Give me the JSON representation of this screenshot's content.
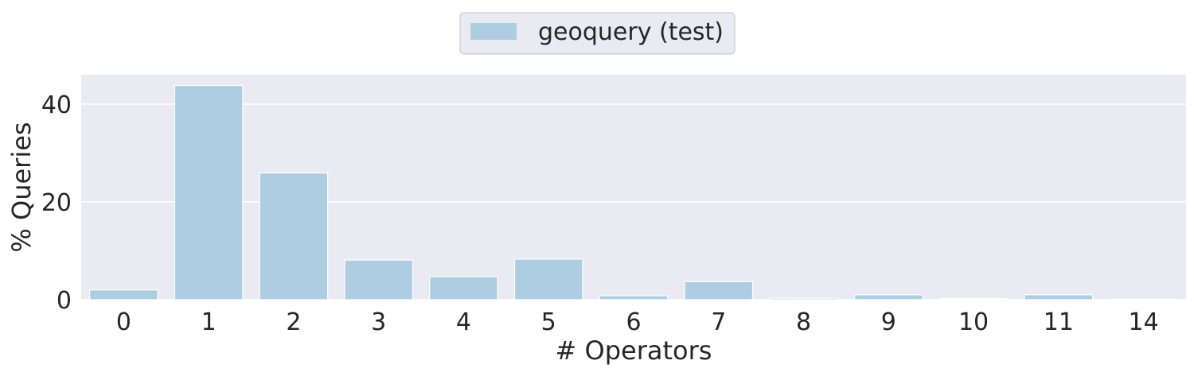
{
  "chart_data": {
    "type": "bar",
    "categories": [
      "0",
      "1",
      "2",
      "3",
      "4",
      "5",
      "6",
      "7",
      "8",
      "9",
      "10",
      "11",
      "14"
    ],
    "series": [
      {
        "name": "geoquery (test)",
        "values": [
          2.0,
          43.8,
          25.9,
          8.1,
          4.7,
          8.3,
          0.8,
          3.7,
          0.3,
          1.0,
          0.2,
          1.0,
          0.1
        ]
      }
    ],
    "xlabel": "# Operators",
    "ylabel": "% Queries",
    "ylim": [
      0,
      46
    ],
    "yticks": [
      0,
      20,
      40
    ],
    "grid": true,
    "legend_position": "top-center",
    "colors": {
      "bar": "#aecde1",
      "plot_background": "#eaeaf2",
      "grid": "#ffffff",
      "text": "#262626"
    }
  }
}
